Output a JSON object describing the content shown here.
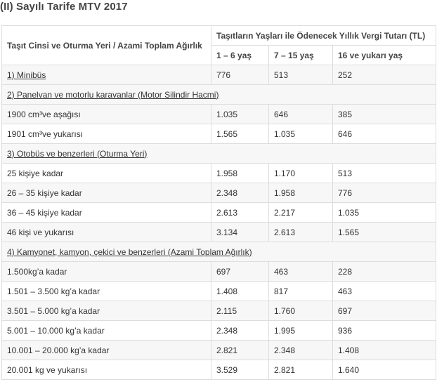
{
  "title": "(II) Sayılı Tarife MTV 2017",
  "table": {
    "col1_header": "Taşıt Cinsi ve Oturma Yeri / Azami Toplam Ağırlık",
    "group_header": "Taşıtların Yaşları ile Ödenecek Yıllık Vergi Tutarı (TL)",
    "age_headers": [
      "1 – 6 yaş",
      "7 – 15 yaş",
      "16 ve yukarı yaş"
    ],
    "rows": [
      {
        "type": "data",
        "label": "1) Minibüs",
        "link": true,
        "values": [
          "776",
          "513",
          "252"
        ]
      },
      {
        "type": "section",
        "label": "2) Panelvan ve motorlu karavanlar (Motor Silindir Hacmi)"
      },
      {
        "type": "data",
        "label": "1900 cm³ve aşağısı",
        "link": false,
        "values": [
          "1.035",
          "646",
          "385"
        ]
      },
      {
        "type": "data",
        "label": "1901 cm³ve yukarısı",
        "link": false,
        "values": [
          "1.565",
          "1.035",
          "646"
        ]
      },
      {
        "type": "section",
        "label": "3) Otobüs ve benzerleri (Oturma Yeri)"
      },
      {
        "type": "data",
        "label": "25 kişiye kadar",
        "link": false,
        "values": [
          "1.958",
          "1.170",
          "513"
        ]
      },
      {
        "type": "data",
        "label": "26 – 35 kişiye kadar",
        "link": false,
        "values": [
          "2.348",
          "1.958",
          "776"
        ]
      },
      {
        "type": "data",
        "label": "36 – 45 kişiye kadar",
        "link": false,
        "values": [
          "2.613",
          "2.217",
          "1.035"
        ]
      },
      {
        "type": "data",
        "label": "46 kişi ve yukarısı",
        "link": false,
        "values": [
          "3.134",
          "2.613",
          "1.565"
        ]
      },
      {
        "type": "section",
        "label": "4) Kamyonet, kamyon, çekici ve benzerleri (Azami Toplam Ağırlık)"
      },
      {
        "type": "data",
        "label": "1.500kg’a kadar",
        "link": false,
        "values": [
          "697",
          "463",
          "228"
        ]
      },
      {
        "type": "data",
        "label": "1.501 – 3.500 kg’a kadar",
        "link": false,
        "values": [
          "1.408",
          "817",
          "463"
        ]
      },
      {
        "type": "data",
        "label": "3.501 – 5.000 kg’a kadar",
        "link": false,
        "values": [
          "2.115",
          "1.760",
          "697"
        ]
      },
      {
        "type": "data",
        "label": "5.001 – 10.000 kg’a kadar",
        "link": false,
        "values": [
          "2.348",
          "1.995",
          "936"
        ]
      },
      {
        "type": "data",
        "label": "10.001 – 20.000 kg’a kadar",
        "link": false,
        "values": [
          "2.821",
          "2.348",
          "1.408"
        ]
      },
      {
        "type": "data",
        "label": "20.001 kg ve yukarısı",
        "link": false,
        "values": [
          "3.529",
          "2.821",
          "1.640"
        ]
      }
    ]
  }
}
